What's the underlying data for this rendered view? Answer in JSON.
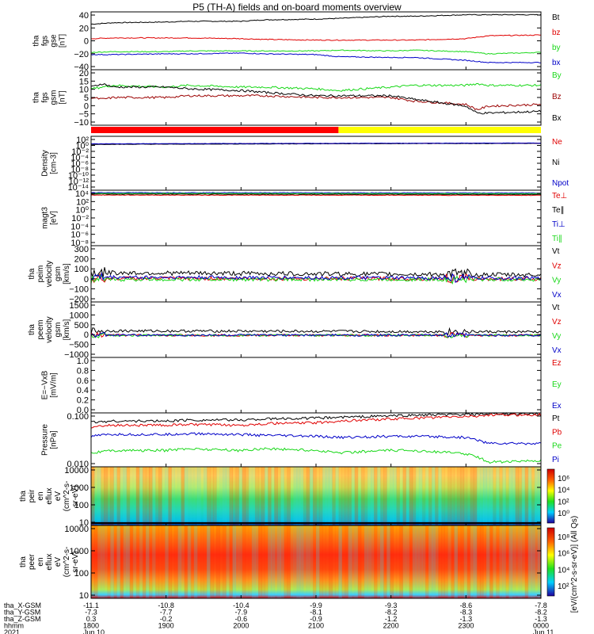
{
  "title": "P5 (TH-A) fields and on-board moments overview",
  "colors": {
    "black": "#000000",
    "red": "#e00000",
    "green": "#18d818",
    "blue": "#0000c8",
    "dark_red": "#9b0000",
    "bar_red": "#ff0000",
    "bar_yellow": "#ffff00"
  },
  "chart_data": [
    {
      "type": "line",
      "id": "fgs_gse",
      "ylabel": [
        "tha",
        "fgs",
        "gse",
        "[nT]"
      ],
      "ylim": [
        -40,
        40
      ],
      "yticks": [
        "40",
        "20",
        "0",
        "−20",
        "−40"
      ],
      "legend": [
        "Bt",
        "bz",
        "by",
        "bx"
      ],
      "x": [
        1800,
        1830,
        1900,
        1930,
        2000,
        2030,
        2100,
        2130,
        2200,
        2230,
        2300,
        2330,
        2400
      ],
      "series": [
        {
          "name": "Bt",
          "color": "#000000",
          "values": [
            23,
            25,
            26,
            27,
            27,
            29,
            30,
            31,
            34,
            34,
            36,
            36,
            36
          ]
        },
        {
          "name": "bz",
          "color": "#e00000",
          "values": [
            3,
            4,
            4,
            4,
            3,
            2,
            1,
            1,
            1,
            1,
            3,
            7,
            8
          ]
        },
        {
          "name": "by",
          "color": "#18d818",
          "values": [
            -16,
            -15,
            -15,
            -14,
            -14,
            -14,
            -14,
            -13,
            -14,
            -13,
            -15,
            -18,
            -16
          ]
        },
        {
          "name": "bx",
          "color": "#0000c8",
          "values": [
            -19,
            -19,
            -18,
            -18,
            -17,
            -18,
            -19,
            -22,
            -23,
            -23,
            -27,
            -30,
            -30
          ]
        }
      ]
    },
    {
      "type": "line",
      "id": "fgs_gsm",
      "ylabel": [
        "tha",
        "fgs",
        "gsm",
        "[nT]"
      ],
      "ylim": [
        -12,
        20
      ],
      "yticks": [
        "20",
        "15",
        "10",
        "5",
        "0",
        "−5",
        "−10"
      ],
      "legend": [
        "By",
        "Bz",
        "Bx"
      ],
      "x": [
        1800,
        1815,
        1830,
        1900,
        1930,
        2000,
        2030,
        2100,
        2130,
        2200,
        2230,
        2300,
        2315,
        2330,
        2400
      ],
      "series": [
        {
          "name": "By",
          "color": "#18d818",
          "values": [
            9,
            10,
            11,
            10,
            11,
            10,
            10,
            9,
            8,
            10,
            11,
            11,
            12,
            11,
            11
          ]
        },
        {
          "name": "Bz",
          "color": "#9b0000",
          "values": [
            4,
            3,
            4,
            4,
            5,
            5,
            5,
            4,
            4,
            4,
            2,
            0,
            -3,
            -1,
            0
          ]
        },
        {
          "name": "Bx",
          "color": "#000000",
          "values": [
            10,
            12,
            10,
            10,
            9,
            8,
            7,
            5,
            5,
            5,
            3,
            -1,
            -5,
            -5,
            -4
          ]
        }
      ]
    },
    {
      "type": "line",
      "id": "density",
      "log": true,
      "ylabel": [
        "Density",
        "[cm-3]"
      ],
      "ylim": [
        1e-14,
        100.0
      ],
      "yticks": [
        "10²",
        "10⁰",
        "10⁻²",
        "10⁻⁴",
        "10⁻⁶",
        "10⁻⁸",
        "10⁻¹⁰",
        "10⁻¹²",
        "10⁻¹⁴"
      ],
      "legend": [
        "Ne",
        "Ni",
        "Npot"
      ],
      "x": [
        1800,
        2400
      ],
      "series": [
        {
          "name": "Ne",
          "color": "#e00000",
          "values": [
            0.5,
            0.9
          ]
        },
        {
          "name": "Ni",
          "color": "#000000",
          "values": [
            0.4,
            0.8
          ]
        },
        {
          "name": "Npot",
          "color": "#0000c8",
          "values": [
            0.6,
            1.0
          ]
        }
      ]
    },
    {
      "type": "line",
      "id": "temperature",
      "log": true,
      "ylabel": [
        "magt3",
        "[eV]"
      ],
      "ylim": [
        1e-08,
        10000.0
      ],
      "yticks": [
        "10⁴",
        "10²",
        "10⁰",
        "10⁻²",
        "10⁻⁴",
        "10⁻⁶",
        "10⁻⁸"
      ],
      "legend": [
        "Te⊥",
        "Te∥",
        "Ti⊥",
        "Ti∥"
      ],
      "x": [
        1800,
        2400
      ],
      "series": [
        {
          "name": "Te⊥",
          "color": "#e00000",
          "values": [
            900,
            800
          ]
        },
        {
          "name": "Te∥",
          "color": "#000000",
          "values": [
            1500,
            1200
          ]
        },
        {
          "name": "Ti⊥",
          "color": "#0000c8",
          "values": [
            3000,
            2500
          ]
        },
        {
          "name": "Ti∥",
          "color": "#18d818",
          "values": [
            2000,
            1800
          ]
        }
      ]
    },
    {
      "type": "line",
      "id": "peim_velocity",
      "ylabel": [
        "tha",
        "peim",
        "velocity",
        "gsm",
        "[km/s]"
      ],
      "ylim": [
        -200,
        300
      ],
      "yticks": [
        "300",
        "200",
        "100",
        "0",
        "−100",
        "−200"
      ],
      "legend": [
        "Vt",
        "Vz",
        "Vy",
        "Vx"
      ],
      "x": [
        1800,
        2400
      ],
      "series": [
        {
          "name": "Vt",
          "color": "#000000",
          "values": [
            60,
            40
          ]
        },
        {
          "name": "Vz",
          "color": "#e00000",
          "values": [
            10,
            5
          ]
        },
        {
          "name": "Vy",
          "color": "#18d818",
          "values": [
            0,
            0
          ]
        },
        {
          "name": "Vx",
          "color": "#0000c8",
          "values": [
            20,
            10
          ]
        }
      ]
    },
    {
      "type": "line",
      "id": "peem_velocity",
      "ylabel": [
        "tha",
        "peem",
        "velocity",
        "gsm",
        "[km/s]"
      ],
      "ylim": [
        -1000,
        1500
      ],
      "yticks": [
        "1500",
        "1000",
        "500",
        "0",
        "−500",
        "−1000"
      ],
      "legend": [
        "Vt",
        "Vz",
        "Vy",
        "Vx"
      ],
      "x": [
        1800,
        2400
      ],
      "series": [
        {
          "name": "Vt",
          "color": "#000000",
          "values": [
            200,
            150
          ]
        },
        {
          "name": "Vz",
          "color": "#e00000",
          "values": [
            0,
            0
          ]
        },
        {
          "name": "Vy",
          "color": "#18d818",
          "values": [
            0,
            0
          ]
        },
        {
          "name": "Vx",
          "color": "#0000c8",
          "values": [
            0,
            0
          ]
        }
      ]
    },
    {
      "type": "line",
      "id": "efield",
      "ylabel": [
        "E=−VxB",
        "[mV/m]"
      ],
      "ylim": [
        0,
        1
      ],
      "yticks": [
        "1.0",
        "0.8",
        "0.6",
        "0.4",
        "0.2",
        "0.0"
      ],
      "legend": [
        "Ez",
        "Ey",
        "Ex"
      ],
      "x": [],
      "series": []
    },
    {
      "type": "line",
      "id": "pressure",
      "log": true,
      "ylabel": [
        "Pressure",
        "[nPa]"
      ],
      "ylim": [
        0.005,
        1
      ],
      "yticks": [
        "0.100",
        "0.010"
      ],
      "legend": [
        "Pt",
        "Pb",
        "Pe",
        "Pi"
      ],
      "x": [
        1800,
        1830,
        1900,
        1930,
        2000,
        2030,
        2100,
        2130,
        2200,
        2230,
        2300,
        2330,
        2400
      ],
      "series": [
        {
          "name": "Pt",
          "color": "#000000",
          "values": [
            0.4,
            0.45,
            0.45,
            0.5,
            0.5,
            0.55,
            0.6,
            0.65,
            0.75,
            0.8,
            0.85,
            0.9,
            0.9
          ]
        },
        {
          "name": "Pb",
          "color": "#e00000",
          "values": [
            0.25,
            0.3,
            0.3,
            0.32,
            0.3,
            0.35,
            0.38,
            0.45,
            0.55,
            0.6,
            0.7,
            0.8,
            0.85
          ]
        },
        {
          "name": "Pe",
          "color": "#18d818",
          "values": [
            0.02,
            0.025,
            0.025,
            0.03,
            0.025,
            0.03,
            0.025,
            0.02,
            0.025,
            0.025,
            0.018,
            0.008,
            0.009
          ]
        },
        {
          "name": "Pi",
          "color": "#0000c8",
          "values": [
            0.1,
            0.12,
            0.12,
            0.13,
            0.12,
            0.11,
            0.1,
            0.09,
            0.1,
            0.1,
            0.09,
            0.05,
            0.05
          ]
        }
      ]
    },
    {
      "type": "heatmap",
      "id": "peir_eflux",
      "log": true,
      "ylabel": [
        "tha",
        "peir",
        "en",
        "eflux",
        "eV",
        "(cm^2-s-",
        "sr-eV)"
      ],
      "ylim": [
        5,
        30000
      ],
      "yticks": [
        "10000",
        "1000",
        "100",
        "10"
      ],
      "colorbar_ticks": [
        "10⁶",
        "10⁴",
        "10²",
        "10⁰"
      ]
    },
    {
      "type": "heatmap",
      "id": "peer_eflux",
      "log": true,
      "ylabel": [
        "tha",
        "peer",
        "en",
        "eflux",
        "eV",
        "(cm^2-s-",
        "sr-eV)"
      ],
      "ylim": [
        5,
        30000
      ],
      "yticks": [
        "10000",
        "1000",
        "100",
        "10"
      ],
      "colorbar_ticks": [
        "10⁸",
        "10⁶",
        "10⁴",
        "10²"
      ]
    }
  ],
  "colorbar_label": "[eV/(cm^2-s-sr-eV)] (All Qs)",
  "colorbar_label_rotated": "[eV/(cm^2-s-sr-eV)] (All Qs)",
  "x_axis": {
    "row_labels": [
      "tha_X-GSM",
      "tha_Y-GSM",
      "tha_Z-GSM",
      "hhmm",
      "2021"
    ],
    "columns": [
      {
        "values": [
          "-11.1",
          "-7.3",
          "0.3",
          "1800",
          "Jun 10"
        ]
      },
      {
        "values": [
          "-10.8",
          "-7.7",
          "-0.2",
          "1900",
          ""
        ]
      },
      {
        "values": [
          "-10.4",
          "-7.9",
          "-0.6",
          "2000",
          ""
        ]
      },
      {
        "values": [
          "-9.9",
          "-8.1",
          "-0.9",
          "2100",
          ""
        ]
      },
      {
        "values": [
          "-9.3",
          "-8.2",
          "-1.2",
          "2200",
          ""
        ]
      },
      {
        "values": [
          "-8.6",
          "-8.3",
          "-1.3",
          "2300",
          ""
        ]
      },
      {
        "values": [
          "-7.8",
          "-8.2",
          "-1.3",
          "0000",
          "Jun 11"
        ]
      }
    ]
  },
  "mode_bar": {
    "segments": [
      {
        "color": "#ff0000",
        "from": 1800,
        "to": 2130
      },
      {
        "color": "#ffff00",
        "from": 2130,
        "to": 2400
      }
    ]
  }
}
